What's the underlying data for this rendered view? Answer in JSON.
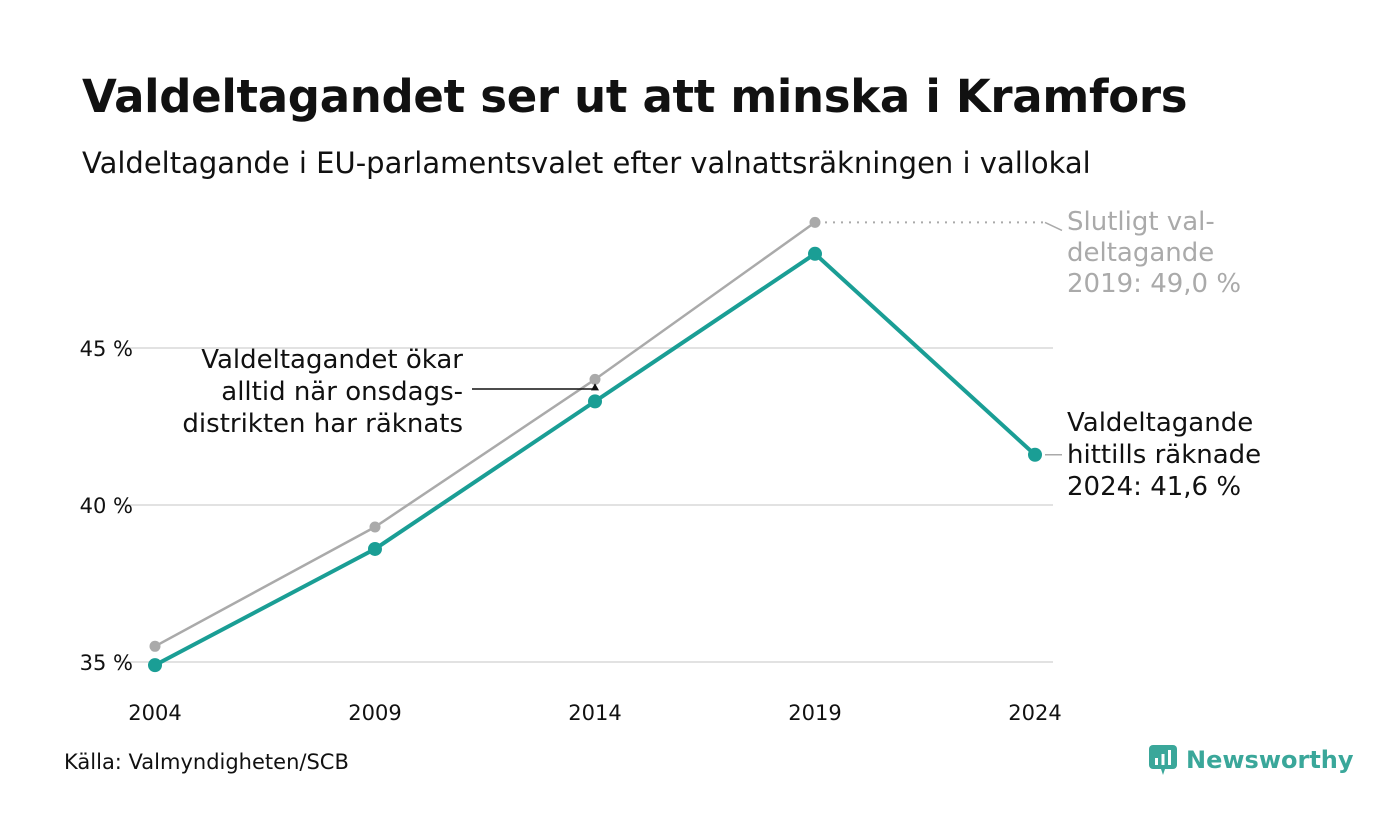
{
  "title": "Valdeltagandet ser ut att minska i Kramfors",
  "subtitle": "Valdeltagande i EU-parlamentsvalet efter valnattsräkningen i vallokal",
  "source": "Källa: Valmyndigheten/SCB",
  "brand": "Newsworthy",
  "chart_data": {
    "type": "line",
    "x": [
      2004,
      2009,
      2014,
      2019,
      2024
    ],
    "xticks": [
      "2004",
      "2009",
      "2014",
      "2019",
      "2024"
    ],
    "yticks": [
      {
        "value": 35,
        "label": "35 %"
      },
      {
        "value": 40,
        "label": "40 %"
      },
      {
        "value": 45,
        "label": "45 %"
      }
    ],
    "ylim": [
      34.5,
      49.5
    ],
    "grid": true,
    "series": [
      {
        "key": "final",
        "color": "#aaaaaa",
        "values": [
          35.5,
          39.3,
          44.0,
          49.0,
          null
        ]
      },
      {
        "key": "election_night",
        "color": "#1a9e95",
        "values": [
          34.9,
          38.6,
          43.3,
          48.0,
          41.6
        ]
      }
    ],
    "annotations": {
      "final": [
        "Slutligt val-",
        "deltagande",
        "2019: 49,0 %"
      ],
      "current": [
        "Valdeltagande",
        "hittills räknade",
        "2024: 41,6 %"
      ],
      "note": [
        "Valdeltagandet ökar",
        "alltid när onsdags-",
        "distrikten har räknats"
      ]
    }
  }
}
